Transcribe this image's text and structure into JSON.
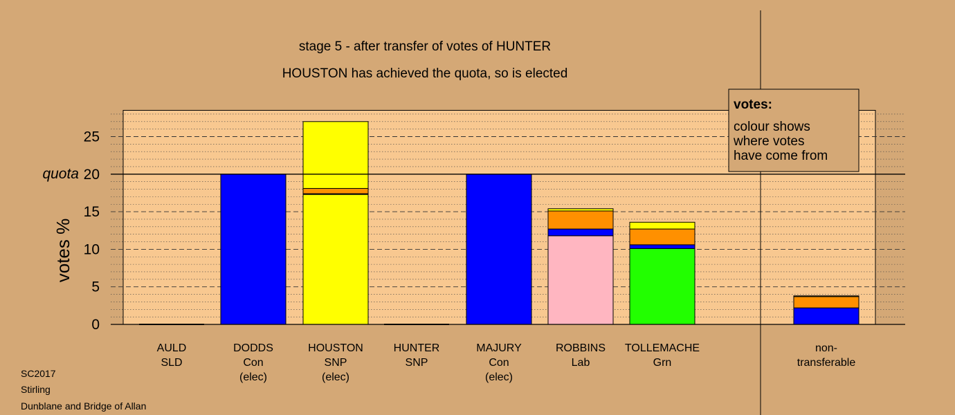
{
  "title": "stage 5 - after transfer of votes of HUNTER",
  "subtitle": "HOUSTON has achieved the quota, so is elected",
  "ylabel": "votes %",
  "quota_label": "quota",
  "footer": [
    "SC2017",
    "Stirling",
    "Dunblane and Bridge of Allan"
  ],
  "legend": {
    "title": "votes:",
    "lines": [
      "colour shows",
      "where votes",
      "have come from"
    ]
  },
  "colors": {
    "background": "#d4a876",
    "plot_bg": "#f8c890",
    "Con": "#0000ff",
    "SNP": "#ffff00",
    "Lab": "#ffb6c1",
    "Grn": "#22ff00",
    "SLD": "#ff9000"
  },
  "chart_data": {
    "type": "bar",
    "stacked": true,
    "ylim": [
      0,
      28.5
    ],
    "yticks": [
      0,
      5,
      10,
      15,
      20,
      25
    ],
    "quota": 20,
    "categories": [
      {
        "name": "AULD",
        "party": "SLD",
        "status": ""
      },
      {
        "name": "DODDS",
        "party": "Con",
        "status": "(elec)"
      },
      {
        "name": "HOUSTON",
        "party": "SNP",
        "status": "(elec)"
      },
      {
        "name": "HUNTER",
        "party": "SNP",
        "status": ""
      },
      {
        "name": "MAJURY",
        "party": "Con",
        "status": "(elec)"
      },
      {
        "name": "ROBBINS",
        "party": "Lab",
        "status": ""
      },
      {
        "name": "TOLLEMACHE",
        "party": "Grn",
        "status": ""
      },
      {
        "name": "non-",
        "party": "transferable",
        "status": ""
      }
    ],
    "bars": [
      {
        "segments": [
          {
            "source": "SLD",
            "value": 0
          }
        ]
      },
      {
        "segments": [
          {
            "source": "Con",
            "value": 20
          }
        ]
      },
      {
        "segments": [
          {
            "source": "SNP",
            "value": 17.3
          },
          {
            "source": "Con",
            "value": 0.1
          },
          {
            "source": "SLD",
            "value": 0.7
          },
          {
            "source": "SNP",
            "value": 8.9
          }
        ]
      },
      {
        "segments": [
          {
            "source": "SNP",
            "value": 0
          }
        ]
      },
      {
        "segments": [
          {
            "source": "Con",
            "value": 20
          }
        ]
      },
      {
        "segments": [
          {
            "source": "Lab",
            "value": 11.8
          },
          {
            "source": "Con",
            "value": 0.9
          },
          {
            "source": "SLD",
            "value": 2.4
          },
          {
            "source": "SNP",
            "value": 0.3
          }
        ]
      },
      {
        "segments": [
          {
            "source": "Grn",
            "value": 10.1
          },
          {
            "source": "Con",
            "value": 0.5
          },
          {
            "source": "SLD",
            "value": 2.1
          },
          {
            "source": "SNP",
            "value": 0.9
          }
        ]
      },
      {
        "segments": [
          {
            "source": "Con",
            "value": 2.2
          },
          {
            "source": "SLD",
            "value": 1.5
          },
          {
            "source": "SNP",
            "value": 0.1
          }
        ]
      }
    ]
  }
}
